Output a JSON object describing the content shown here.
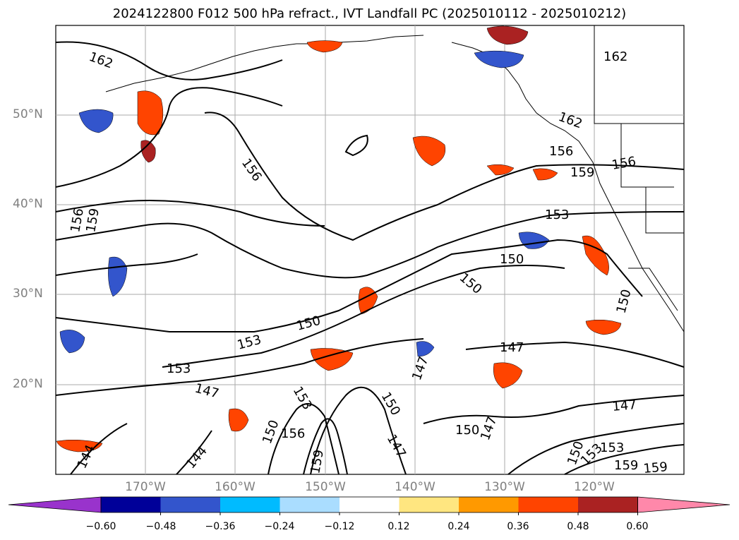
{
  "title": "2024122800 F012 500 hPa refract., IVT Landfall PC (2025010112 - 2025010212)",
  "map": {
    "lat_labels": [
      "50°N",
      "40°N",
      "30°N",
      "20°N"
    ],
    "lon_labels": [
      "170°W",
      "160°W",
      "150°W",
      "140°W",
      "130°W",
      "120°W"
    ],
    "contour_labels": [
      "162",
      "162",
      "162",
      "156",
      "156",
      "156",
      "159",
      "159",
      "156",
      "153",
      "150",
      "150",
      "150",
      "153",
      "150",
      "147",
      "147",
      "147",
      "147",
      "153",
      "153",
      "156",
      "150",
      "150",
      "147",
      "150",
      "147",
      "144",
      "144",
      "159",
      "150",
      "153",
      "153",
      "159",
      "159"
    ]
  },
  "colorbar": {
    "ticks": [
      "−0.60",
      "−0.48",
      "−0.36",
      "−0.24",
      "−0.12",
      "0.12",
      "0.24",
      "0.36",
      "0.48",
      "0.60"
    ],
    "colors": [
      "#9933cc",
      "#000099",
      "#3355cc",
      "#00bbff",
      "#aaddff",
      "#ffffff",
      "#ffe680",
      "#ff9900",
      "#ff4400",
      "#aa2222",
      "#ff88aa"
    ]
  }
}
